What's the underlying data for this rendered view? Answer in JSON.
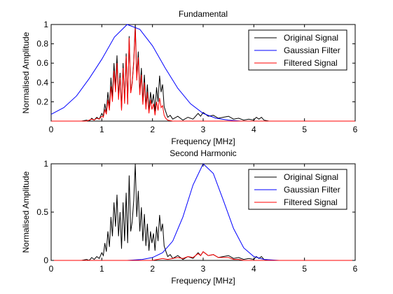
{
  "chart_data": [
    {
      "type": "line",
      "title": "Fundamental",
      "xlabel": "Frequency [MHz]",
      "ylabel": "Normalised Amplitude",
      "xlim": [
        0,
        6
      ],
      "ylim": [
        0,
        1
      ],
      "xticks": [
        "0",
        "1",
        "2",
        "3",
        "4",
        "5",
        "6"
      ],
      "yticks": [
        {
          "value": 0.2,
          "label": "0.2"
        },
        {
          "value": 0.4,
          "label": "0.4"
        },
        {
          "value": 0.6,
          "label": "0.6"
        },
        {
          "value": 0.8,
          "label": "0.8"
        },
        {
          "value": 1.0,
          "label": "1"
        }
      ],
      "grid": false,
      "legend_position": "top-right",
      "series": [
        {
          "name": "Original Signal",
          "color": "#000000",
          "x": [
            0,
            0.6,
            0.7,
            0.75,
            0.8,
            0.85,
            0.9,
            0.95,
            1.0,
            1.03,
            1.06,
            1.09,
            1.12,
            1.15,
            1.18,
            1.21,
            1.24,
            1.27,
            1.3,
            1.33,
            1.36,
            1.39,
            1.42,
            1.45,
            1.48,
            1.51,
            1.54,
            1.57,
            1.6,
            1.63,
            1.66,
            1.69,
            1.72,
            1.75,
            1.78,
            1.81,
            1.84,
            1.87,
            1.9,
            1.93,
            1.96,
            1.99,
            2.02,
            2.05,
            2.08,
            2.11,
            2.14,
            2.17,
            2.2,
            2.23,
            2.26,
            2.3,
            2.35,
            2.4,
            2.5,
            2.6,
            2.7,
            2.8,
            2.9,
            2.95,
            3.0,
            3.05,
            3.1,
            3.2,
            3.3,
            3.4,
            3.5,
            3.6,
            3.7,
            3.8,
            3.9,
            4.0,
            4.05,
            4.1,
            4.15,
            4.2,
            4.3,
            6.0
          ],
          "y": [
            0,
            0,
            0.01,
            0.0,
            0.03,
            0.01,
            0.04,
            0.02,
            0.08,
            0.05,
            0.18,
            0.09,
            0.3,
            0.14,
            0.45,
            0.25,
            0.6,
            0.35,
            0.68,
            0.25,
            0.5,
            0.12,
            0.6,
            0.2,
            0.7,
            0.18,
            0.88,
            0.3,
            0.4,
            0.62,
            1.0,
            0.45,
            0.72,
            0.3,
            0.55,
            0.2,
            0.48,
            0.15,
            0.38,
            0.1,
            0.3,
            0.18,
            0.28,
            0.1,
            0.35,
            0.2,
            0.47,
            0.3,
            0.38,
            0.15,
            0.1,
            0.04,
            0.06,
            0.02,
            0.05,
            0.01,
            0.04,
            0.02,
            0.08,
            0.05,
            0.09,
            0.07,
            0.05,
            0.06,
            0.03,
            0.04,
            0.05,
            0.02,
            0.03,
            0.01,
            0.02,
            0.01,
            0.04,
            0.02,
            0.04,
            0.01,
            0.0,
            0.0
          ]
        },
        {
          "name": "Gaussian Filter",
          "color": "#0000ff",
          "x": [
            0,
            0.25,
            0.5,
            0.75,
            1.0,
            1.25,
            1.5,
            1.75,
            2.0,
            2.25,
            2.5,
            2.75,
            3.0,
            3.25,
            3.5,
            3.75,
            4.0,
            4.5,
            5.0,
            6.0
          ],
          "y": [
            0.07,
            0.14,
            0.26,
            0.44,
            0.64,
            0.87,
            1.0,
            0.95,
            0.78,
            0.55,
            0.34,
            0.18,
            0.08,
            0.03,
            0.01,
            0.0,
            0.0,
            0.0,
            0.0,
            0.0
          ]
        },
        {
          "name": "Filtered Signal",
          "color": "#ff0000",
          "x": [
            0,
            0.7,
            0.8,
            0.85,
            0.9,
            0.95,
            1.0,
            1.03,
            1.06,
            1.09,
            1.12,
            1.15,
            1.18,
            1.21,
            1.24,
            1.27,
            1.3,
            1.33,
            1.36,
            1.39,
            1.42,
            1.45,
            1.48,
            1.51,
            1.54,
            1.57,
            1.6,
            1.63,
            1.66,
            1.69,
            1.72,
            1.75,
            1.78,
            1.81,
            1.84,
            1.87,
            1.9,
            1.93,
            1.96,
            1.99,
            2.02,
            2.05,
            2.08,
            2.11,
            2.14,
            2.17,
            2.2,
            2.23,
            2.26,
            2.3,
            2.4,
            2.6,
            3.0,
            6.0
          ],
          "y": [
            0,
            0.0,
            0.02,
            0.01,
            0.03,
            0.02,
            0.05,
            0.04,
            0.12,
            0.07,
            0.22,
            0.11,
            0.36,
            0.2,
            0.52,
            0.3,
            0.6,
            0.22,
            0.45,
            0.11,
            0.55,
            0.18,
            0.67,
            0.17,
            0.86,
            0.29,
            0.39,
            0.6,
            0.96,
            0.42,
            0.66,
            0.27,
            0.48,
            0.17,
            0.4,
            0.12,
            0.3,
            0.08,
            0.22,
            0.12,
            0.18,
            0.06,
            0.2,
            0.11,
            0.24,
            0.14,
            0.16,
            0.06,
            0.03,
            0.01,
            0.0,
            0.0,
            0.0,
            0.0
          ]
        }
      ]
    },
    {
      "type": "line",
      "title": "Second Harmonic",
      "xlabel": "Frequency [MHz]",
      "ylabel": "Normalised Amplitude",
      "xlim": [
        0,
        6
      ],
      "ylim": [
        0,
        1
      ],
      "xticks": [
        "0",
        "1",
        "2",
        "3",
        "4",
        "5",
        "6"
      ],
      "yticks": [
        {
          "value": 0,
          "label": "0"
        },
        {
          "value": 0.5,
          "label": "0.5"
        },
        {
          "value": 1.0,
          "label": "1"
        }
      ],
      "grid": false,
      "legend_position": "top-right",
      "series": [
        {
          "name": "Original Signal",
          "color": "#000000",
          "x": [
            0,
            0.6,
            0.7,
            0.75,
            0.8,
            0.85,
            0.9,
            0.95,
            1.0,
            1.03,
            1.06,
            1.09,
            1.12,
            1.15,
            1.18,
            1.21,
            1.24,
            1.27,
            1.3,
            1.33,
            1.36,
            1.39,
            1.42,
            1.45,
            1.48,
            1.51,
            1.54,
            1.57,
            1.6,
            1.63,
            1.66,
            1.69,
            1.72,
            1.75,
            1.78,
            1.81,
            1.84,
            1.87,
            1.9,
            1.93,
            1.96,
            1.99,
            2.02,
            2.05,
            2.08,
            2.11,
            2.14,
            2.17,
            2.2,
            2.23,
            2.26,
            2.3,
            2.35,
            2.4,
            2.5,
            2.6,
            2.7,
            2.8,
            2.9,
            2.95,
            3.0,
            3.05,
            3.1,
            3.2,
            3.3,
            3.4,
            3.5,
            3.6,
            3.7,
            3.8,
            3.9,
            4.0,
            4.05,
            4.1,
            4.15,
            4.2,
            4.3,
            6.0
          ],
          "y": [
            0,
            0,
            0.01,
            0.0,
            0.03,
            0.01,
            0.04,
            0.02,
            0.08,
            0.05,
            0.18,
            0.09,
            0.3,
            0.14,
            0.45,
            0.25,
            0.6,
            0.35,
            0.68,
            0.25,
            0.5,
            0.12,
            0.6,
            0.2,
            0.7,
            0.18,
            0.88,
            0.3,
            0.4,
            0.62,
            1.0,
            0.45,
            0.72,
            0.3,
            0.55,
            0.2,
            0.48,
            0.15,
            0.38,
            0.1,
            0.3,
            0.18,
            0.28,
            0.1,
            0.35,
            0.2,
            0.47,
            0.3,
            0.38,
            0.15,
            0.1,
            0.04,
            0.06,
            0.02,
            0.05,
            0.01,
            0.04,
            0.02,
            0.08,
            0.05,
            0.09,
            0.07,
            0.05,
            0.06,
            0.03,
            0.04,
            0.05,
            0.02,
            0.03,
            0.01,
            0.02,
            0.01,
            0.04,
            0.02,
            0.04,
            0.01,
            0.0,
            0.0
          ]
        },
        {
          "name": "Gaussian Filter",
          "color": "#0000ff",
          "x": [
            0,
            1.5,
            1.8,
            2.0,
            2.2,
            2.4,
            2.6,
            2.8,
            3.0,
            3.2,
            3.4,
            3.6,
            3.8,
            4.0,
            4.2,
            4.5,
            6.0
          ],
          "y": [
            0,
            0.0,
            0.01,
            0.03,
            0.08,
            0.2,
            0.45,
            0.78,
            1.0,
            0.9,
            0.62,
            0.33,
            0.13,
            0.04,
            0.01,
            0.0,
            0.0
          ],
          "note": ""
        },
        {
          "name": "Filtered Signal",
          "color": "#ff0000",
          "x": [
            0,
            2.0,
            2.2,
            2.3,
            2.4,
            2.5,
            2.6,
            2.7,
            2.8,
            2.9,
            2.95,
            3.0,
            3.05,
            3.1,
            3.2,
            3.3,
            3.4,
            3.5,
            3.6,
            3.7,
            3.8,
            3.9,
            4.0,
            4.2,
            6.0
          ],
          "y": [
            0,
            0.0,
            0.02,
            0.01,
            0.02,
            0.03,
            0.02,
            0.04,
            0.03,
            0.07,
            0.05,
            0.09,
            0.07,
            0.05,
            0.06,
            0.03,
            0.03,
            0.03,
            0.01,
            0.01,
            0.0,
            0.0,
            0.0,
            0.0,
            0.0
          ]
        }
      ]
    }
  ]
}
